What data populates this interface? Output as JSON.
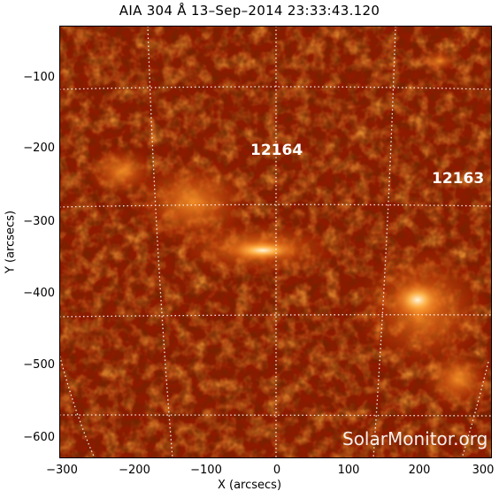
{
  "title": "AIA 304 Å 13–Sep–2014 23:33:43.120",
  "x_axis": {
    "label": "X (arcsecs)",
    "ticks": [
      "−300",
      "−200",
      "−100",
      "0",
      "100",
      "200",
      "300"
    ],
    "range": [
      -300,
      300
    ]
  },
  "y_axis": {
    "label": "Y (arcsecs)",
    "ticks": [
      "−100",
      "−200",
      "−300",
      "−400",
      "−500",
      "−600"
    ],
    "range": [
      -630,
      -30
    ]
  },
  "active_regions": [
    "12164",
    "12163"
  ],
  "watermark": "SolarMonitor.org",
  "colors": {
    "background_dark": "#5a0a00",
    "mid": "#b62a00",
    "bright": "#ff8a1a",
    "core": "#fff4d6"
  }
}
